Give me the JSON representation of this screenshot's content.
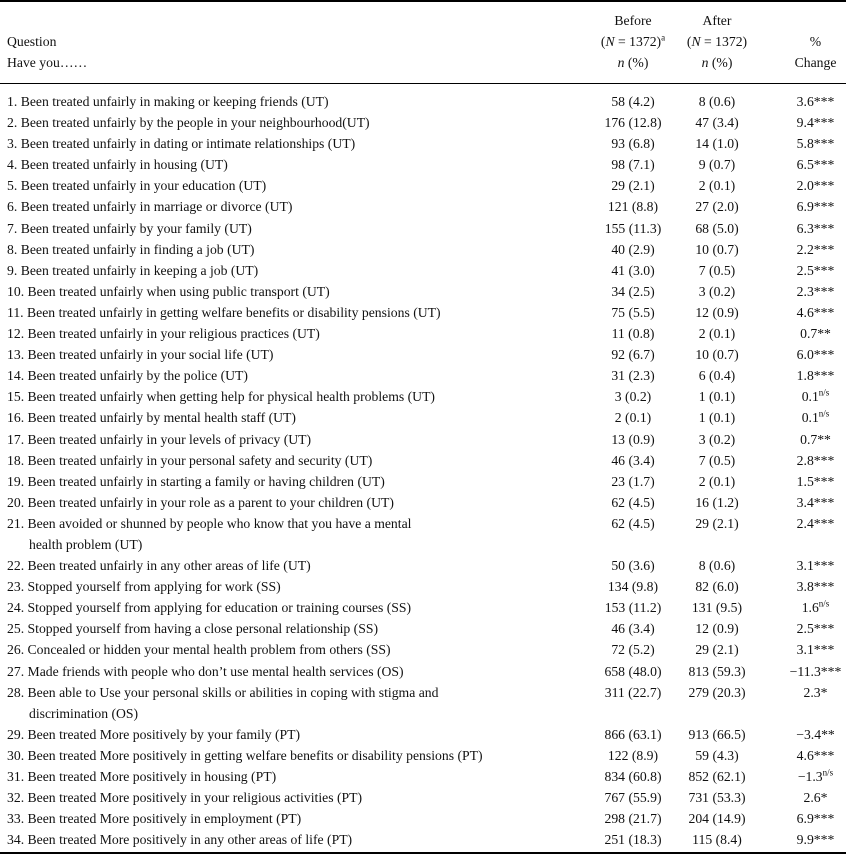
{
  "header": {
    "question_label": "Question",
    "question_sub": "Have you……",
    "before": {
      "title": "Before",
      "n_pre": "(",
      "n_italic": "N",
      "n_post": " = 1372)",
      "footnote": "a",
      "stat_italic": "n",
      "stat_post": " (%)"
    },
    "after": {
      "title": "After",
      "n_pre": "(",
      "n_italic": "N",
      "n_post": " = 1372)",
      "stat_italic": "n",
      "stat_post": " (%)"
    },
    "change": {
      "title": "%",
      "subtitle": "Change"
    }
  },
  "rows": [
    {
      "question": "1. Been treated unfairly in making or keeping friends (UT)",
      "before": "58 (4.2)",
      "after": "8 (0.6)",
      "change": "3.6***"
    },
    {
      "question": "2. Been treated unfairly by the people in your neighbourhood(UT)",
      "before": "176 (12.8)",
      "after": "47 (3.4)",
      "change": "9.4***"
    },
    {
      "question": "3. Been treated unfairly in dating or intimate relationships (UT)",
      "before": "93 (6.8)",
      "after": "14 (1.0)",
      "change": "5.8***"
    },
    {
      "question": "4. Been treated unfairly in housing (UT)",
      "before": "98 (7.1)",
      "after": "9 (0.7)",
      "change": "6.5***"
    },
    {
      "question": "5. Been treated unfairly in your education (UT)",
      "before": "29 (2.1)",
      "after": "2 (0.1)",
      "change": "2.0***"
    },
    {
      "question": "6. Been treated unfairly in marriage or divorce (UT)",
      "before": "121 (8.8)",
      "after": "27 (2.0)",
      "change": "6.9***"
    },
    {
      "question": "7. Been treated unfairly by your family (UT)",
      "before": "155 (11.3)",
      "after": "68 (5.0)",
      "change": "6.3***"
    },
    {
      "question": "8. Been treated unfairly in finding a job (UT)",
      "before": "40 (2.9)",
      "after": "10 (0.7)",
      "change": "2.2***"
    },
    {
      "question": "9. Been treated unfairly in keeping a job (UT)",
      "before": "41 (3.0)",
      "after": "7 (0.5)",
      "change": "2.5***"
    },
    {
      "question": "10. Been treated unfairly when using public transport (UT)",
      "before": "34 (2.5)",
      "after": "3 (0.2)",
      "change": "2.3***"
    },
    {
      "question": "11. Been treated unfairly in getting welfare benefits or disability pensions (UT)",
      "before": "75 (5.5)",
      "after": "12 (0.9)",
      "change": "4.6***"
    },
    {
      "question": "12. Been treated unfairly in your religious practices (UT)",
      "before": "11 (0.8)",
      "after": "2 (0.1)",
      "change": "0.7**"
    },
    {
      "question": "13. Been treated unfairly in your social life (UT)",
      "before": "92 (6.7)",
      "after": "10 (0.7)",
      "change": "6.0***"
    },
    {
      "question": "14. Been treated unfairly by the police (UT)",
      "before": "31 (2.3)",
      "after": "6 (0.4)",
      "change": "1.8***"
    },
    {
      "question": "15. Been treated unfairly when getting help for physical health problems (UT)",
      "before": "3 (0.2)",
      "after": "1 (0.1)",
      "change": "0.1",
      "change_sup": "n/s"
    },
    {
      "question": "16. Been treated unfairly by mental health staff (UT)",
      "before": "2 (0.1)",
      "after": "1 (0.1)",
      "change": "0.1",
      "change_sup": "n/s"
    },
    {
      "question": "17. Been treated unfairly in your levels of privacy (UT)",
      "before": "13 (0.9)",
      "after": "3 (0.2)",
      "change": "0.7**"
    },
    {
      "question": "18. Been treated unfairly in your personal safety and security (UT)",
      "before": "46 (3.4)",
      "after": "7 (0.5)",
      "change": "2.8***"
    },
    {
      "question": "19. Been treated unfairly in starting a family or having children (UT)",
      "before": "23 (1.7)",
      "after": "2 (0.1)",
      "change": "1.5***"
    },
    {
      "question": "20. Been treated unfairly in your role as a parent to your children (UT)",
      "before": "62 (4.5)",
      "after": "16 (1.2)",
      "change": "3.4***"
    },
    {
      "question": "21. Been avoided or shunned by people who know that you have a mental",
      "question2": "health problem (UT)",
      "before": "62 (4.5)",
      "after": "29 (2.1)",
      "change": "2.4***"
    },
    {
      "question": "22. Been treated unfairly in any other areas of life (UT)",
      "before": "50 (3.6)",
      "after": "8 (0.6)",
      "change": "3.1***"
    },
    {
      "question": "23. Stopped yourself from applying for work (SS)",
      "before": "134 (9.8)",
      "after": "82 (6.0)",
      "change": "3.8***"
    },
    {
      "question": "24. Stopped yourself from applying for education or training courses (SS)",
      "before": "153 (11.2)",
      "after": "131 (9.5)",
      "change": "1.6",
      "change_sup": "n/s"
    },
    {
      "question": "25. Stopped yourself from having a close personal relationship (SS)",
      "before": "46 (3.4)",
      "after": "12 (0.9)",
      "change": "2.5***"
    },
    {
      "question": "26. Concealed or hidden your mental health problem from others (SS)",
      "before": "72 (5.2)",
      "after": "29 (2.1)",
      "change": "3.1***"
    },
    {
      "question": "27. Made friends with people who don’t use mental health services (OS)",
      "before": "658 (48.0)",
      "after": "813 (59.3)",
      "change": "−11.3***"
    },
    {
      "question": "28. Been able to Use your personal skills or abilities in coping with stigma and",
      "question2": "discrimination (OS)",
      "before": "311 (22.7)",
      "after": "279 (20.3)",
      "change": "2.3*"
    },
    {
      "question": "29. Been treated More positively by your family (PT)",
      "before": "866 (63.1)",
      "after": "913 (66.5)",
      "change": "−3.4**"
    },
    {
      "question": "30. Been treated More positively in getting welfare benefits or disability pensions (PT)",
      "before": "122 (8.9)",
      "after": "59 (4.3)",
      "change": "4.6***"
    },
    {
      "question": "31. Been treated More positively in housing (PT)",
      "before": "834 (60.8)",
      "after": "852 (62.1)",
      "change": "−1.3",
      "change_sup": "n/s"
    },
    {
      "question": "32. Been treated More positively in your religious activities (PT)",
      "before": "767 (55.9)",
      "after": "731 (53.3)",
      "change": "2.6*"
    },
    {
      "question": "33. Been treated More positively in employment (PT)",
      "before": "298 (21.7)",
      "after": "204 (14.9)",
      "change": "6.9***"
    },
    {
      "question": "34. Been treated More positively in any other areas of life (PT)",
      "before": "251 (18.3)",
      "after": "115 (8.4)",
      "change": "9.9***"
    }
  ]
}
